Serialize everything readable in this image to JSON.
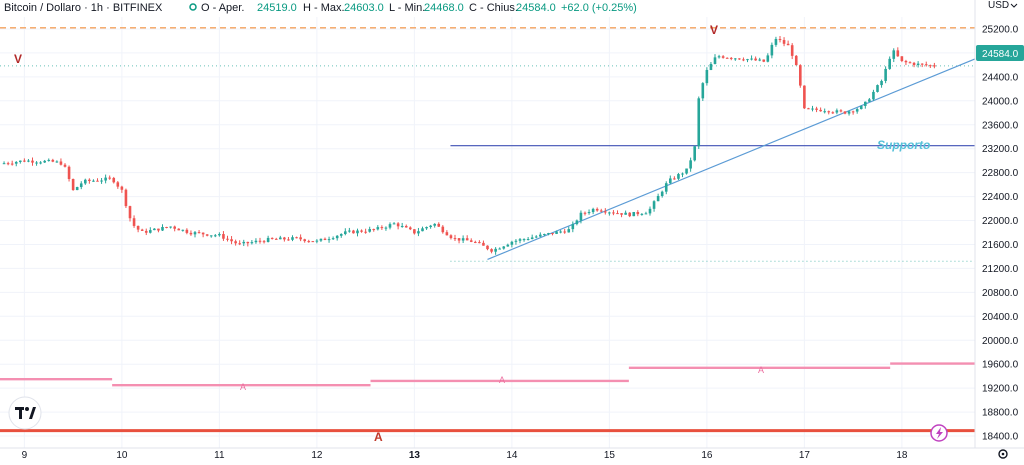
{
  "header": {
    "symbol": "Bitcoin / Dollaro · 1h · BITFINEX",
    "open_label": "O - Aper.",
    "open_value": "24519.0",
    "high_label": "H - Max.",
    "high_value": "24603.0",
    "low_label": "L - Min.",
    "low_value": "24468.0",
    "close_label": "C - Chius.",
    "close_value": "24584.0",
    "change": "+62.0 (+0.25%)"
  },
  "price_axis": {
    "currency": "USD",
    "last_price_label": "24584.0"
  },
  "annotations": {
    "support_label": "Supporto",
    "v_left": "V",
    "v_top": "V",
    "a_labels": [
      "A",
      "A",
      "A"
    ],
    "a_bottom": "A"
  },
  "colors": {
    "up": "#26a69a",
    "down": "#ef5350",
    "support": "#3f51b5",
    "trend": "#5b9bd5",
    "orange": "#f5a25d",
    "pink": "#f48fb1",
    "red_line": "#e8503e",
    "label_up": "#26a69a"
  },
  "chart_data": {
    "type": "candlestick",
    "title": "Bitcoin / Dollaro · 1h · BITFINEX",
    "xlabel": "",
    "ylabel": "USD",
    "ylim": [
      18200,
      25400
    ],
    "xlim": [
      8.75,
      18.75
    ],
    "y_ticks": [
      18400,
      18800,
      19200,
      19600,
      20000,
      20400,
      20800,
      21200,
      21600,
      22000,
      22400,
      22800,
      23200,
      23600,
      24000,
      24400,
      24800,
      25200
    ],
    "x_ticks": [
      {
        "x": 9,
        "label": "9"
      },
      {
        "x": 10,
        "label": "10"
      },
      {
        "x": 11,
        "label": "11"
      },
      {
        "x": 12,
        "label": "12"
      },
      {
        "x": 13,
        "label": "13",
        "bold": true
      },
      {
        "x": 14,
        "label": "14"
      },
      {
        "x": 15,
        "label": "15"
      },
      {
        "x": 16,
        "label": "16"
      },
      {
        "x": 17,
        "label": "17"
      },
      {
        "x": 18,
        "label": "18"
      }
    ],
    "last_price": 24584,
    "grid": true,
    "close_path": [
      [
        8.75,
        22950
      ],
      [
        9.0,
        23000
      ],
      [
        9.3,
        22980
      ],
      [
        9.4,
        22950
      ],
      [
        9.5,
        22500
      ],
      [
        9.6,
        22650
      ],
      [
        9.9,
        22700
      ],
      [
        10.0,
        22500
      ],
      [
        10.1,
        21950
      ],
      [
        10.2,
        21800
      ],
      [
        10.5,
        21900
      ],
      [
        10.7,
        21800
      ],
      [
        11.0,
        21750
      ],
      [
        11.2,
        21600
      ],
      [
        11.5,
        21680
      ],
      [
        11.8,
        21700
      ],
      [
        12.0,
        21650
      ],
      [
        12.3,
        21800
      ],
      [
        12.6,
        21850
      ],
      [
        12.8,
        21950
      ],
      [
        13.0,
        21800
      ],
      [
        13.2,
        21950
      ],
      [
        13.4,
        21700
      ],
      [
        13.6,
        21650
      ],
      [
        13.8,
        21500
      ],
      [
        14.0,
        21650
      ],
      [
        14.3,
        21750
      ],
      [
        14.6,
        21850
      ],
      [
        14.7,
        22100
      ],
      [
        14.85,
        22200
      ],
      [
        15.0,
        22150
      ],
      [
        15.2,
        22100
      ],
      [
        15.4,
        22150
      ],
      [
        15.6,
        22650
      ],
      [
        15.8,
        22850
      ],
      [
        15.88,
        23250
      ],
      [
        15.92,
        24100
      ],
      [
        16.0,
        24500
      ],
      [
        16.1,
        24750
      ],
      [
        16.4,
        24700
      ],
      [
        16.6,
        24650
      ],
      [
        16.7,
        25050
      ],
      [
        16.85,
        24900
      ],
      [
        16.93,
        24500
      ],
      [
        17.0,
        23850
      ],
      [
        17.2,
        23850
      ],
      [
        17.4,
        23800
      ],
      [
        17.6,
        23900
      ],
      [
        17.8,
        24350
      ],
      [
        17.9,
        24850
      ],
      [
        18.0,
        24650
      ],
      [
        18.2,
        24600
      ],
      [
        18.35,
        24584
      ]
    ],
    "levels": [
      {
        "name": "support",
        "y": 23250,
        "x0": 13.37,
        "x1": 18.75
      },
      {
        "name": "orange-top",
        "y": 25220,
        "x0": 8.75,
        "x1": 18.75
      },
      {
        "name": "last-price-dotted",
        "y": 24584,
        "x0": 8.75,
        "x1": 18.75
      },
      {
        "name": "lower-dotted",
        "y": 21320,
        "x0": 13.37,
        "x1": 18.75
      }
    ],
    "trend_line": [
      [
        13.75,
        21350
      ],
      [
        18.75,
        24700
      ]
    ],
    "a_segments": [
      {
        "x0": 8.75,
        "x1": 9.9,
        "y": 19350
      },
      {
        "x0": 9.9,
        "x1": 12.55,
        "y": 19250
      },
      {
        "x0": 12.55,
        "x1": 15.2,
        "y": 19320
      },
      {
        "x0": 15.2,
        "x1": 17.88,
        "y": 19540
      },
      {
        "x0": 17.88,
        "x1": 18.75,
        "y": 19610
      }
    ],
    "a_line_bottom": 18490
  }
}
